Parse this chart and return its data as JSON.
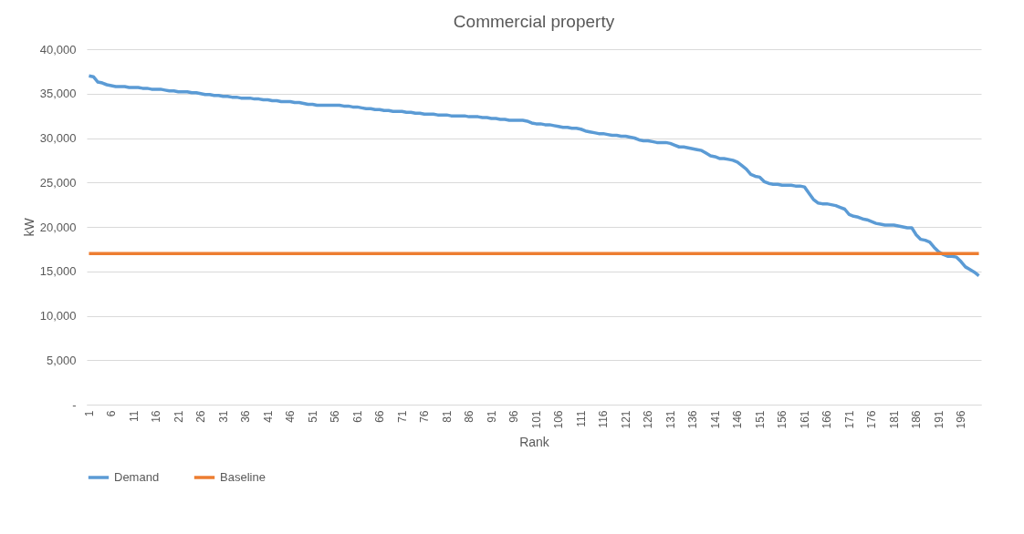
{
  "chart_data": {
    "type": "line",
    "title": "Commercial property",
    "xlabel": "Rank",
    "ylabel": "kW",
    "categories": [
      "1",
      null,
      null,
      null,
      null,
      "6",
      null,
      null,
      null,
      null,
      "11",
      null,
      null,
      null,
      null,
      "16",
      null,
      null,
      null,
      null,
      "21",
      null,
      null,
      null,
      null,
      "26",
      null,
      null,
      null,
      null,
      "31",
      null,
      null,
      null,
      null,
      "36",
      null,
      null,
      null,
      null,
      "41",
      null,
      null,
      null,
      null,
      "46",
      null,
      null,
      null,
      null,
      "51",
      null,
      null,
      null,
      null,
      "56",
      null,
      null,
      null,
      null,
      "61",
      null,
      null,
      null,
      null,
      "66",
      null,
      null,
      null,
      null,
      "71",
      null,
      null,
      null,
      null,
      "76",
      null,
      null,
      null,
      null,
      "81",
      null,
      null,
      null,
      null,
      "86",
      null,
      null,
      null,
      null,
      "91",
      null,
      null,
      null,
      null,
      "96",
      null,
      null,
      null,
      null,
      "101",
      null,
      null,
      null,
      null,
      "106",
      null,
      null,
      null,
      null,
      "111",
      null,
      null,
      null,
      null,
      "116",
      null,
      null,
      null,
      null,
      "121",
      null,
      null,
      null,
      null,
      "126",
      null,
      null,
      null,
      null,
      "131",
      null,
      null,
      null,
      null,
      "136",
      null,
      null,
      null,
      null,
      "141",
      null,
      null,
      null,
      null,
      "146",
      null,
      null,
      null,
      null,
      "151",
      null,
      null,
      null,
      null,
      "156",
      null,
      null,
      null,
      null,
      "161",
      null,
      null,
      null,
      null,
      "166",
      null,
      null,
      null,
      null,
      "171",
      null,
      null,
      null,
      null,
      "176",
      null,
      null,
      null,
      null,
      "181",
      null,
      null,
      null,
      null,
      "186",
      null,
      null,
      null,
      null,
      "191",
      null,
      null,
      null,
      null,
      "196",
      null,
      null,
      null,
      null
    ],
    "series": [
      {
        "name": "Demand",
        "color": "#5b9bd5",
        "values": [
          37000,
          36900,
          36300,
          36200,
          36000,
          35900,
          35800,
          35800,
          35800,
          35700,
          35700,
          35700,
          35600,
          35600,
          35500,
          35500,
          35500,
          35400,
          35300,
          35300,
          35200,
          35200,
          35200,
          35100,
          35100,
          35000,
          34900,
          34900,
          34800,
          34800,
          34700,
          34700,
          34600,
          34600,
          34500,
          34500,
          34500,
          34400,
          34400,
          34300,
          34300,
          34200,
          34200,
          34100,
          34100,
          34100,
          34000,
          34000,
          33900,
          33800,
          33800,
          33700,
          33700,
          33700,
          33700,
          33700,
          33700,
          33600,
          33600,
          33500,
          33500,
          33400,
          33300,
          33300,
          33200,
          33200,
          33100,
          33100,
          33000,
          33000,
          33000,
          32900,
          32900,
          32800,
          32800,
          32700,
          32700,
          32700,
          32600,
          32600,
          32600,
          32500,
          32500,
          32500,
          32500,
          32400,
          32400,
          32400,
          32300,
          32300,
          32200,
          32200,
          32100,
          32100,
          32000,
          32000,
          32000,
          32000,
          31900,
          31700,
          31600,
          31600,
          31500,
          31500,
          31400,
          31300,
          31200,
          31200,
          31100,
          31100,
          31000,
          30800,
          30700,
          30600,
          30500,
          30500,
          30400,
          30300,
          30300,
          30200,
          30200,
          30100,
          30000,
          29800,
          29700,
          29700,
          29600,
          29500,
          29500,
          29500,
          29400,
          29200,
          29000,
          29000,
          28900,
          28800,
          28700,
          28600,
          28300,
          28000,
          27900,
          27700,
          27700,
          27600,
          27500,
          27300,
          26900,
          26500,
          25900,
          25700,
          25600,
          25100,
          24900,
          24800,
          24800,
          24700,
          24700,
          24700,
          24600,
          24600,
          24500,
          23800,
          23100,
          22700,
          22600,
          22600,
          22500,
          22400,
          22200,
          22000,
          21400,
          21200,
          21100,
          20900,
          20800,
          20600,
          20400,
          20300,
          20200,
          20200,
          20200,
          20100,
          20000,
          19900,
          19900,
          19100,
          18600,
          18500,
          18300,
          17700,
          17200,
          16900,
          16700,
          16700,
          16600,
          16100,
          15500,
          15200,
          14900,
          14500
        ]
      },
      {
        "name": "Baseline",
        "color": "#ed7d31",
        "values": [
          17000,
          17000,
          17000,
          17000,
          17000,
          17000,
          17000,
          17000,
          17000,
          17000,
          17000,
          17000,
          17000,
          17000,
          17000,
          17000,
          17000,
          17000,
          17000,
          17000,
          17000,
          17000,
          17000,
          17000,
          17000,
          17000,
          17000,
          17000,
          17000,
          17000,
          17000,
          17000,
          17000,
          17000,
          17000,
          17000,
          17000,
          17000,
          17000,
          17000,
          17000,
          17000,
          17000,
          17000,
          17000,
          17000,
          17000,
          17000,
          17000,
          17000,
          17000,
          17000,
          17000,
          17000,
          17000,
          17000,
          17000,
          17000,
          17000,
          17000,
          17000,
          17000,
          17000,
          17000,
          17000,
          17000,
          17000,
          17000,
          17000,
          17000,
          17000,
          17000,
          17000,
          17000,
          17000,
          17000,
          17000,
          17000,
          17000,
          17000,
          17000,
          17000,
          17000,
          17000,
          17000,
          17000,
          17000,
          17000,
          17000,
          17000,
          17000,
          17000,
          17000,
          17000,
          17000,
          17000,
          17000,
          17000,
          17000,
          17000,
          17000,
          17000,
          17000,
          17000,
          17000,
          17000,
          17000,
          17000,
          17000,
          17000,
          17000,
          17000,
          17000,
          17000,
          17000,
          17000,
          17000,
          17000,
          17000,
          17000,
          17000,
          17000,
          17000,
          17000,
          17000,
          17000,
          17000,
          17000,
          17000,
          17000,
          17000,
          17000,
          17000,
          17000,
          17000,
          17000,
          17000,
          17000,
          17000,
          17000,
          17000,
          17000,
          17000,
          17000,
          17000,
          17000,
          17000,
          17000,
          17000,
          17000,
          17000,
          17000,
          17000,
          17000,
          17000,
          17000,
          17000,
          17000,
          17000,
          17000,
          17000,
          17000,
          17000,
          17000,
          17000,
          17000,
          17000,
          17000,
          17000,
          17000,
          17000,
          17000,
          17000,
          17000,
          17000,
          17000,
          17000,
          17000,
          17000,
          17000,
          17000,
          17000,
          17000,
          17000,
          17000,
          17000,
          17000,
          17000,
          17000,
          17000,
          17000,
          17000,
          17000,
          17000,
          17000,
          17000,
          17000,
          17000,
          17000,
          17000
        ]
      }
    ],
    "ylim": [
      0,
      40000
    ],
    "yticks": [
      {
        "value": 0,
        "label": "-"
      },
      {
        "value": 5000,
        "label": "5,000"
      },
      {
        "value": 10000,
        "label": "10,000"
      },
      {
        "value": 15000,
        "label": "15,000"
      },
      {
        "value": 20000,
        "label": "20,000"
      },
      {
        "value": 25000,
        "label": "25,000"
      },
      {
        "value": 30000,
        "label": "30,000"
      },
      {
        "value": 35000,
        "label": "35,000"
      },
      {
        "value": 40000,
        "label": "40,000"
      }
    ],
    "grid": "y",
    "legend": "bottom"
  }
}
